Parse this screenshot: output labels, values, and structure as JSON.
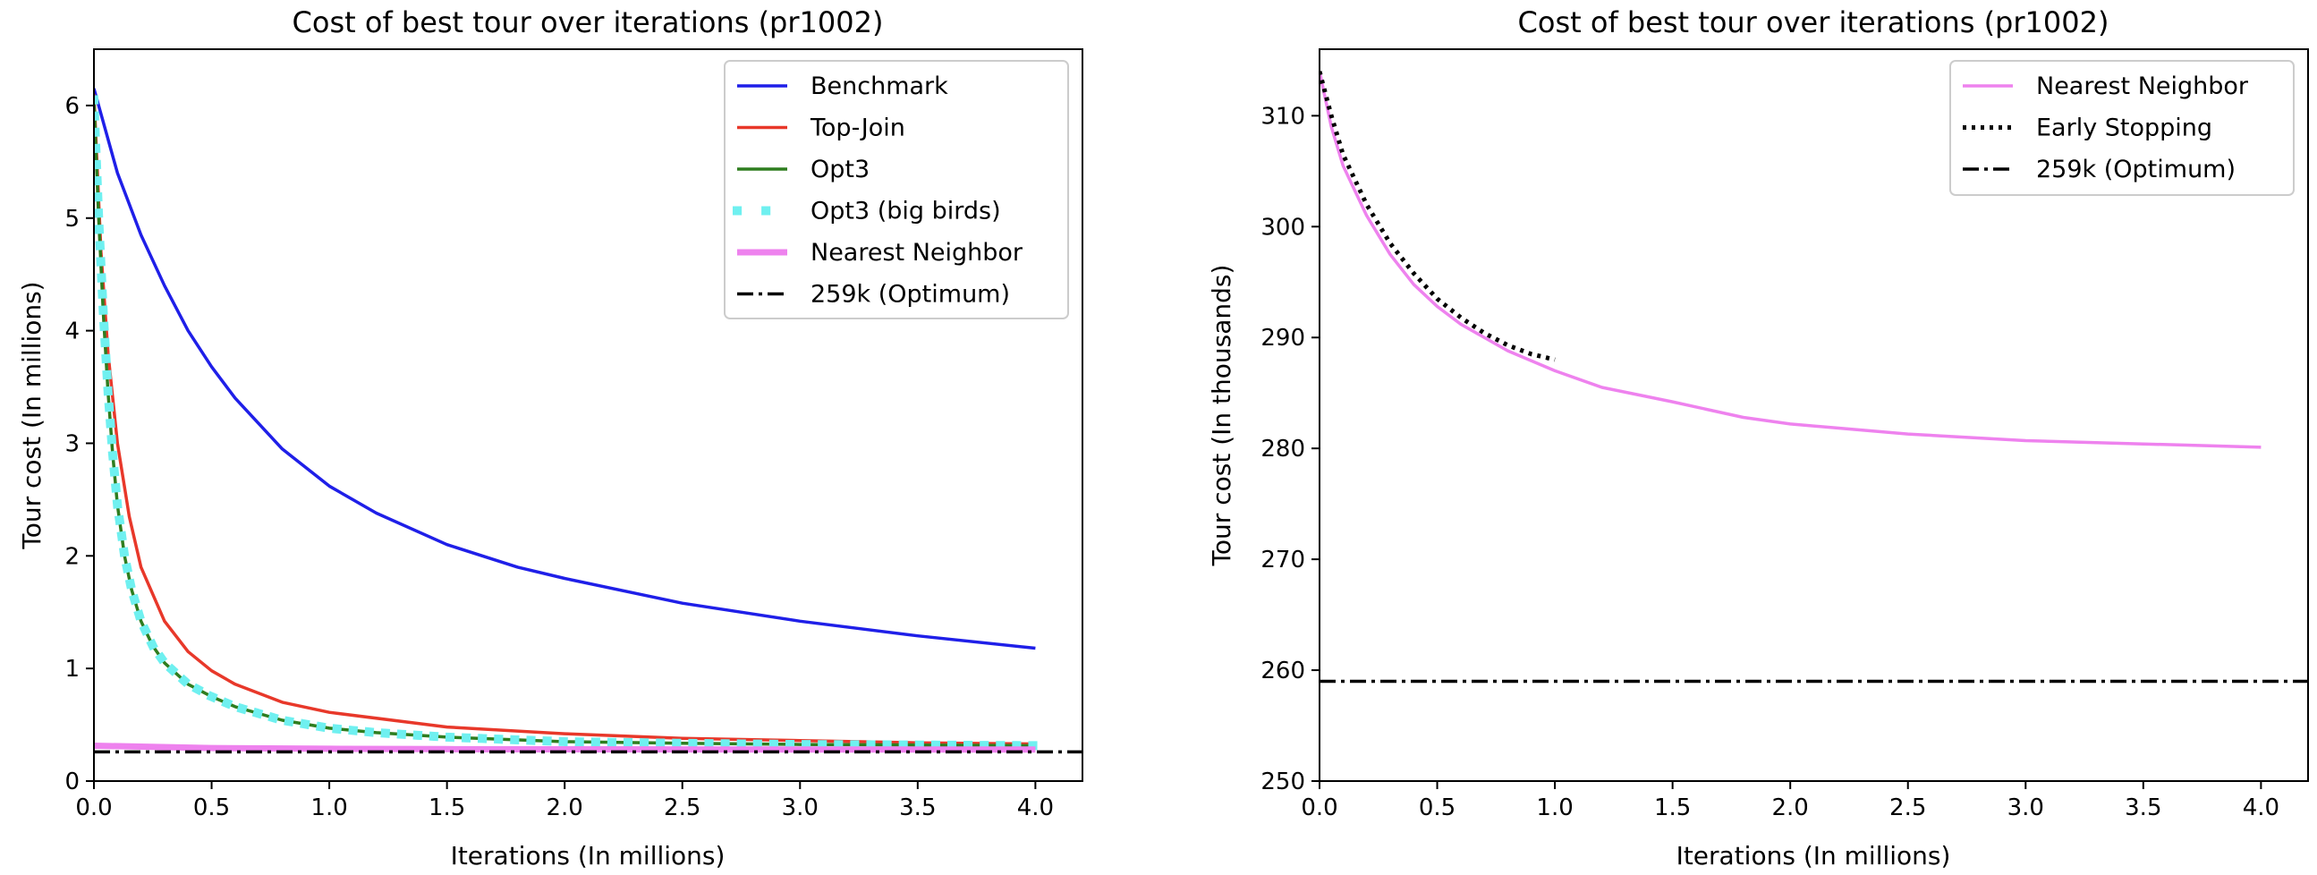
{
  "chart_data": [
    {
      "type": "line",
      "title": "Cost of best tour over iterations (pr1002)",
      "xlabel": "Iterations (In millions)",
      "ylabel": "Tour cost (In millions)",
      "xlim": [
        0,
        4.2
      ],
      "ylim": [
        0,
        6.5
      ],
      "x_ticks": [
        "0.0",
        "0.5",
        "1.0",
        "1.5",
        "2.0",
        "2.5",
        "3.0",
        "3.5",
        "4.0"
      ],
      "y_ticks": [
        "0",
        "1",
        "2",
        "3",
        "4",
        "5",
        "6"
      ],
      "legend_position": "top-right",
      "grid": false,
      "series": [
        {
          "name": "Benchmark",
          "color": "#1f1fe8",
          "style": "solid",
          "x": [
            0,
            0.1,
            0.2,
            0.3,
            0.4,
            0.5,
            0.6,
            0.8,
            1.0,
            1.2,
            1.5,
            1.8,
            2.0,
            2.5,
            3.0,
            3.5,
            4.0
          ],
          "y": [
            6.15,
            5.4,
            4.85,
            4.4,
            4.0,
            3.68,
            3.4,
            2.95,
            2.62,
            2.38,
            2.1,
            1.9,
            1.8,
            1.58,
            1.42,
            1.29,
            1.18
          ]
        },
        {
          "name": "Top-Join",
          "color": "#e8382a",
          "style": "solid",
          "x": [
            0,
            0.03,
            0.06,
            0.1,
            0.15,
            0.2,
            0.3,
            0.4,
            0.5,
            0.6,
            0.8,
            1.0,
            1.5,
            2.0,
            2.5,
            3.0,
            3.5,
            4.0
          ],
          "y": [
            6.1,
            4.7,
            3.8,
            3.0,
            2.35,
            1.9,
            1.42,
            1.15,
            0.98,
            0.86,
            0.7,
            0.61,
            0.48,
            0.42,
            0.38,
            0.36,
            0.34,
            0.33
          ]
        },
        {
          "name": "Opt3",
          "color": "#2e7d1f",
          "style": "solid",
          "x": [
            0,
            0.02,
            0.04,
            0.06,
            0.08,
            0.1,
            0.13,
            0.16,
            0.2,
            0.25,
            0.3,
            0.4,
            0.5,
            0.6,
            0.8,
            1.0,
            1.2,
            1.5,
            2.0,
            2.5,
            3.0,
            3.5,
            4.0
          ],
          "y": [
            6.05,
            5.0,
            4.15,
            3.45,
            2.9,
            2.45,
            2.0,
            1.7,
            1.42,
            1.2,
            1.05,
            0.86,
            0.75,
            0.66,
            0.54,
            0.47,
            0.43,
            0.39,
            0.35,
            0.335,
            0.325,
            0.32,
            0.315
          ]
        },
        {
          "name": "Opt3 (big birds)",
          "color": "#6ff0f0",
          "style": "dotted",
          "x": [
            0,
            0.02,
            0.04,
            0.06,
            0.08,
            0.1,
            0.13,
            0.16,
            0.2,
            0.25,
            0.3,
            0.4,
            0.5,
            0.6,
            0.8,
            1.0,
            1.2,
            1.5,
            2.0,
            2.5,
            3.0,
            3.5,
            4.0
          ],
          "y": [
            6.05,
            5.0,
            4.15,
            3.45,
            2.9,
            2.45,
            2.0,
            1.7,
            1.42,
            1.2,
            1.05,
            0.86,
            0.75,
            0.66,
            0.54,
            0.47,
            0.43,
            0.39,
            0.35,
            0.335,
            0.325,
            0.32,
            0.315
          ]
        },
        {
          "name": "Nearest Neighbor",
          "color": "#ee82ee",
          "style": "thick",
          "x": [
            0,
            0.5,
            1.0,
            1.5,
            2.0,
            2.5,
            3.0,
            3.5,
            4.0
          ],
          "y": [
            0.314,
            0.293,
            0.287,
            0.284,
            0.282,
            0.281,
            0.2805,
            0.2803,
            0.28
          ]
        },
        {
          "name": "259k (Optimum)",
          "color": "#000000",
          "style": "dashdot",
          "x": [
            0,
            4.2
          ],
          "y": [
            0.259,
            0.259
          ]
        }
      ]
    },
    {
      "type": "line",
      "title": "Cost of best tour over iterations (pr1002)",
      "xlabel": "Iterations (In millions)",
      "ylabel": "Tour cost (In thousands)",
      "xlim": [
        0,
        4.2
      ],
      "ylim": [
        250,
        316
      ],
      "x_ticks": [
        "0.0",
        "0.5",
        "1.0",
        "1.5",
        "2.0",
        "2.5",
        "3.0",
        "3.5",
        "4.0"
      ],
      "y_ticks": [
        "250",
        "260",
        "270",
        "280",
        "290",
        "300",
        "310"
      ],
      "legend_position": "top-right",
      "grid": false,
      "series": [
        {
          "name": "Nearest Neighbor",
          "color": "#ee82ee",
          "style": "solid",
          "x": [
            0,
            0.05,
            0.1,
            0.2,
            0.3,
            0.4,
            0.5,
            0.6,
            0.8,
            1.0,
            1.2,
            1.5,
            1.8,
            2.0,
            2.5,
            3.0,
            3.5,
            4.0
          ],
          "y": [
            314,
            309,
            305.5,
            301,
            297.5,
            294.8,
            292.8,
            291.2,
            288.8,
            287,
            285.5,
            284.2,
            282.8,
            282.2,
            281.3,
            280.7,
            280.4,
            280.1
          ]
        },
        {
          "name": "Early Stopping",
          "color": "#000000",
          "style": "dotted",
          "x": [
            0,
            0.05,
            0.1,
            0.2,
            0.3,
            0.4,
            0.5,
            0.6,
            0.7,
            0.8,
            0.9,
            1.0
          ],
          "y": [
            314,
            310,
            306.5,
            302,
            298.5,
            295.8,
            293.5,
            291.8,
            290.4,
            289.3,
            288.5,
            288
          ]
        },
        {
          "name": "259k (Optimum)",
          "color": "#000000",
          "style": "dashdot",
          "x": [
            0,
            4.2
          ],
          "y": [
            259,
            259
          ]
        }
      ]
    }
  ]
}
